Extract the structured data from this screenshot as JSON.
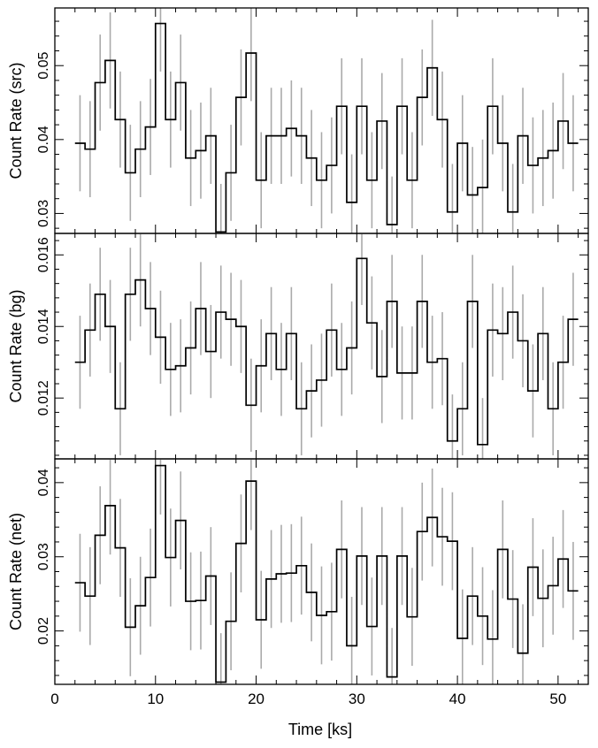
{
  "xlabel": "Time [ks]",
  "colors": {
    "histogram": "#000000",
    "errorbar": "#aaaaaa",
    "frame": "#000000"
  },
  "chart_data": [
    {
      "type": "step",
      "ylabel": "Count Rate (src)",
      "yticks": [
        0.03,
        0.04,
        0.05
      ],
      "ytick_labels": [
        "0.03",
        "0.04",
        "0.05"
      ],
      "ylim": [
        0.0273,
        0.0578
      ],
      "xlim": [
        0,
        53
      ],
      "bin_centers": [
        2.5,
        3.5,
        4.5,
        5.5,
        6.5,
        7.5,
        8.5,
        9.5,
        10.5,
        11.5,
        12.5,
        13.5,
        14.5,
        15.5,
        16.5,
        17.5,
        18.5,
        19.5,
        20.5,
        21.5,
        22.5,
        23.5,
        24.5,
        25.5,
        26.5,
        27.5,
        28.5,
        29.5,
        30.5,
        31.5,
        32.5,
        33.5,
        34.5,
        35.5,
        36.5,
        37.5,
        38.5,
        39.5,
        40.5,
        41.5,
        42.5,
        43.5,
        44.5,
        45.5,
        46.5,
        47.5,
        48.5,
        49.5,
        50.5,
        51.5
      ],
      "values": [
        0.0395,
        0.0387,
        0.0477,
        0.0507,
        0.0427,
        0.0355,
        0.0387,
        0.0417,
        0.0557,
        0.0427,
        0.0477,
        0.0375,
        0.0385,
        0.0405,
        0.0275,
        0.0355,
        0.0457,
        0.0517,
        0.0345,
        0.0405,
        0.0405,
        0.0415,
        0.0405,
        0.0375,
        0.0345,
        0.0365,
        0.0445,
        0.0315,
        0.0445,
        0.0345,
        0.0425,
        0.0285,
        0.0445,
        0.0345,
        0.0457,
        0.0497,
        0.0427,
        0.0302,
        0.0395,
        0.0325,
        0.0335,
        0.0445,
        0.0395,
        0.0302,
        0.0405,
        0.0365,
        0.0375,
        0.0385,
        0.0425,
        0.0395
      ],
      "errors": [
        0.0065,
        0.0065,
        0.0065,
        0.0065,
        0.0065,
        0.0065,
        0.0065,
        0.0065,
        0.0065,
        0.0065,
        0.0065,
        0.0065,
        0.0065,
        0.0065,
        0.0065,
        0.0065,
        0.0065,
        0.0065,
        0.0065,
        0.0065,
        0.0065,
        0.0065,
        0.0065,
        0.0065,
        0.0065,
        0.0065,
        0.0065,
        0.0065,
        0.0065,
        0.0065,
        0.0065,
        0.0065,
        0.0065,
        0.0065,
        0.0065,
        0.0065,
        0.0065,
        0.0065,
        0.0065,
        0.0065,
        0.0065,
        0.0065,
        0.0065,
        0.0065,
        0.0065,
        0.0065,
        0.0065,
        0.0065,
        0.0065,
        0.0065
      ]
    },
    {
      "type": "step",
      "ylabel": "Count Rate (bg)",
      "yticks": [
        0.012,
        0.014,
        0.016
      ],
      "ytick_labels": [
        "0.012",
        "0.014",
        "0.016"
      ],
      "ylim": [
        0.0103,
        0.0166
      ],
      "xlim": [
        0,
        53
      ],
      "bin_centers": [
        2.5,
        3.5,
        4.5,
        5.5,
        6.5,
        7.5,
        8.5,
        9.5,
        10.5,
        11.5,
        12.5,
        13.5,
        14.5,
        15.5,
        16.5,
        17.5,
        18.5,
        19.5,
        20.5,
        21.5,
        22.5,
        23.5,
        24.5,
        25.5,
        26.5,
        27.5,
        28.5,
        29.5,
        30.5,
        31.5,
        32.5,
        33.5,
        34.5,
        35.5,
        36.5,
        37.5,
        38.5,
        39.5,
        40.5,
        41.5,
        42.5,
        43.5,
        44.5,
        45.5,
        46.5,
        47.5,
        48.5,
        49.5,
        50.5,
        51.5
      ],
      "values": [
        0.013,
        0.0139,
        0.0149,
        0.014,
        0.0117,
        0.0149,
        0.0153,
        0.0145,
        0.0137,
        0.0128,
        0.0129,
        0.0134,
        0.0145,
        0.0133,
        0.0144,
        0.0142,
        0.014,
        0.0118,
        0.0129,
        0.0138,
        0.0128,
        0.0138,
        0.0117,
        0.0122,
        0.0125,
        0.0139,
        0.0128,
        0.0134,
        0.0159,
        0.0141,
        0.0126,
        0.0147,
        0.0127,
        0.0127,
        0.0147,
        0.013,
        0.0131,
        0.0108,
        0.0117,
        0.0147,
        0.0107,
        0.0139,
        0.0138,
        0.0144,
        0.0136,
        0.0122,
        0.0138,
        0.0117,
        0.013,
        0.0142
      ],
      "errors": [
        0.0013,
        0.0013,
        0.0013,
        0.0013,
        0.0013,
        0.0013,
        0.0013,
        0.0013,
        0.0013,
        0.0013,
        0.0013,
        0.0013,
        0.0013,
        0.0013,
        0.0013,
        0.0013,
        0.0013,
        0.0013,
        0.0013,
        0.0013,
        0.0013,
        0.0013,
        0.0013,
        0.0013,
        0.0013,
        0.0013,
        0.0013,
        0.0013,
        0.0013,
        0.0013,
        0.0013,
        0.0013,
        0.0013,
        0.0013,
        0.0013,
        0.0013,
        0.0013,
        0.0013,
        0.0013,
        0.0013,
        0.0013,
        0.0013,
        0.0013,
        0.0013,
        0.0013,
        0.0013,
        0.0013,
        0.0013,
        0.0013,
        0.0013
      ]
    },
    {
      "type": "step",
      "ylabel": "Count Rate (net)",
      "yticks": [
        0.02,
        0.03,
        0.04
      ],
      "ytick_labels": [
        "0.02",
        "0.03",
        "0.04"
      ],
      "ylim": [
        0.0128,
        0.0432
      ],
      "xlim": [
        0,
        53
      ],
      "bin_centers": [
        2.5,
        3.5,
        4.5,
        5.5,
        6.5,
        7.5,
        8.5,
        9.5,
        10.5,
        11.5,
        12.5,
        13.5,
        14.5,
        15.5,
        16.5,
        17.5,
        18.5,
        19.5,
        20.5,
        21.5,
        22.5,
        23.5,
        24.5,
        25.5,
        26.5,
        27.5,
        28.5,
        29.5,
        30.5,
        31.5,
        32.5,
        33.5,
        34.5,
        35.5,
        36.5,
        37.5,
        38.5,
        39.5,
        40.5,
        41.5,
        42.5,
        43.5,
        44.5,
        45.5,
        46.5,
        47.5,
        48.5,
        49.5,
        50.5,
        51.5
      ],
      "values": [
        0.0265,
        0.0247,
        0.0329,
        0.0369,
        0.0312,
        0.0205,
        0.0234,
        0.0272,
        0.0423,
        0.0299,
        0.0349,
        0.024,
        0.0241,
        0.0274,
        0.0131,
        0.0213,
        0.0318,
        0.0402,
        0.0215,
        0.027,
        0.0277,
        0.0278,
        0.0288,
        0.0252,
        0.0221,
        0.0226,
        0.031,
        0.018,
        0.0301,
        0.0206,
        0.0301,
        0.0138,
        0.0301,
        0.0219,
        0.0334,
        0.0353,
        0.0327,
        0.0321,
        0.019,
        0.0247,
        0.022,
        0.0189,
        0.031,
        0.0243,
        0.017,
        0.0286,
        0.0244,
        0.0261,
        0.0297,
        0.0254
      ],
      "errors": [
        0.0066,
        0.0066,
        0.0066,
        0.0066,
        0.0066,
        0.0066,
        0.0066,
        0.0066,
        0.0066,
        0.0066,
        0.0066,
        0.0066,
        0.0066,
        0.0066,
        0.0066,
        0.0066,
        0.0066,
        0.0066,
        0.0066,
        0.0066,
        0.0066,
        0.0066,
        0.0066,
        0.0066,
        0.0066,
        0.0066,
        0.0066,
        0.0066,
        0.0066,
        0.0066,
        0.0066,
        0.0066,
        0.0066,
        0.0066,
        0.0066,
        0.0066,
        0.0066,
        0.0066,
        0.0066,
        0.0066,
        0.0066,
        0.0066,
        0.0066,
        0.0066,
        0.0066,
        0.0066,
        0.0066,
        0.0066,
        0.0066,
        0.0066
      ]
    }
  ],
  "xticks": [
    0,
    10,
    20,
    30,
    40,
    50
  ],
  "xtick_labels": [
    "0",
    "10",
    "20",
    "30",
    "40",
    "50"
  ]
}
